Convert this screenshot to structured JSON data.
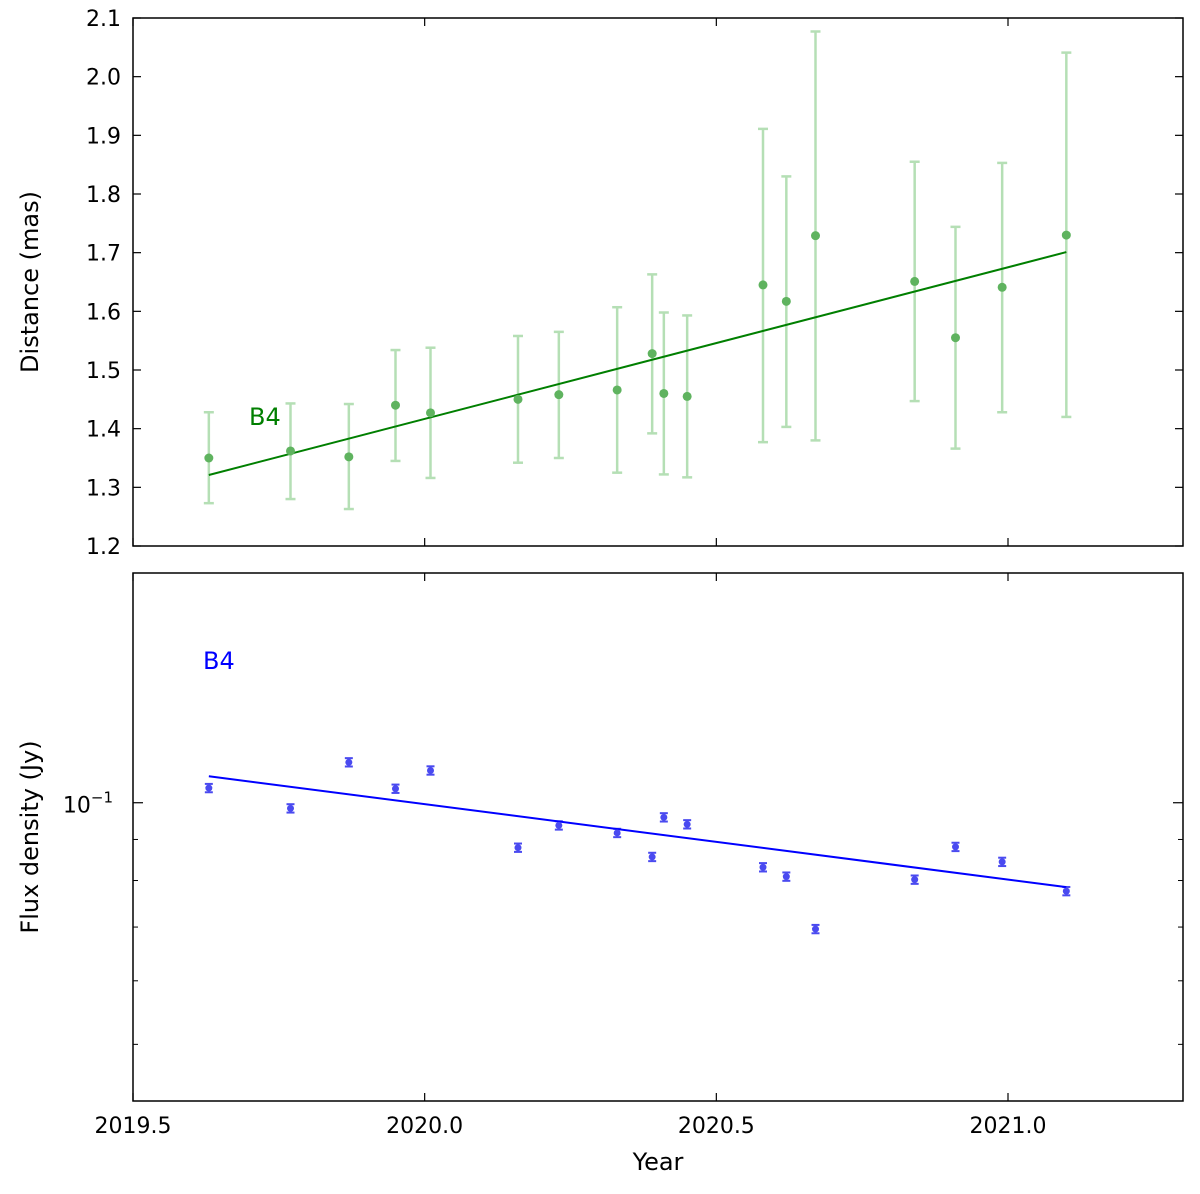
{
  "chart_data": [
    {
      "type": "scatter",
      "panel": "top",
      "ylabel": "Distance (mas)",
      "xlim": [
        2019.5,
        2021.3
      ],
      "ylim": [
        1.2,
        2.1
      ],
      "yscale": "linear",
      "yticks": [
        1.2,
        1.3,
        1.4,
        1.5,
        1.6,
        1.7,
        1.8,
        1.9,
        2.0,
        2.1
      ],
      "ytick_labels": [
        "1.2",
        "1.3",
        "1.4",
        "1.5",
        "1.6",
        "1.7",
        "1.8",
        "1.9",
        "2.0",
        "2.1"
      ],
      "xticks": [
        2019.5,
        2020.0,
        2020.5,
        2021.0
      ],
      "annotation": "B4",
      "annotation_color": "#007f00",
      "point_color": "#5fb35f",
      "errorbar_color": "#b5dfb5",
      "fit_color": "#007f00",
      "series": [
        {
          "x": [
            2019.63,
            2019.77,
            2019.87,
            2019.95,
            2020.01,
            2020.16,
            2020.23,
            2020.33,
            2020.39,
            2020.41,
            2020.45,
            2020.58,
            2020.62,
            2020.67,
            2020.84,
            2020.91,
            2020.99,
            2021.1
          ],
          "y": [
            1.35,
            1.362,
            1.352,
            1.44,
            1.427,
            1.45,
            1.458,
            1.466,
            1.528,
            1.46,
            1.455,
            1.645,
            1.617,
            1.729,
            1.651,
            1.555,
            1.641,
            1.73
          ],
          "yerr_low": [
            1.273,
            1.28,
            1.263,
            1.345,
            1.316,
            1.342,
            1.35,
            1.325,
            1.392,
            1.322,
            1.317,
            1.377,
            1.403,
            1.38,
            1.447,
            1.366,
            1.428,
            1.42
          ],
          "yerr_high": [
            1.428,
            1.443,
            1.442,
            1.534,
            1.538,
            1.558,
            1.565,
            1.607,
            1.663,
            1.598,
            1.593,
            1.911,
            1.83,
            2.077,
            1.855,
            1.744,
            1.853,
            2.041
          ]
        }
      ],
      "fit": {
        "x": [
          2019.63,
          2021.1
        ],
        "y": [
          1.321,
          1.701
        ]
      }
    },
    {
      "type": "scatter",
      "panel": "bottom",
      "xlabel": "Year",
      "ylabel": "Flux density (Jy)",
      "xlim": [
        2019.5,
        2021.3
      ],
      "ylim": [
        0.0425,
        0.1933
      ],
      "yscale": "log",
      "ytick_label_base": "10",
      "ytick_label_exp": "−1",
      "xticks": [
        2019.5,
        2020.0,
        2020.5,
        2021.0
      ],
      "xtick_labels": [
        "2019.5",
        "2020.0",
        "2020.5",
        "2021.0"
      ],
      "annotation": "B4",
      "annotation_color": "#0000ff",
      "point_color": "#4a4af0",
      "fit_color": "#0000ff",
      "series": [
        {
          "x": [
            2019.63,
            2019.77,
            2019.87,
            2019.95,
            2020.01,
            2020.16,
            2020.23,
            2020.33,
            2020.39,
            2020.41,
            2020.45,
            2020.58,
            2020.62,
            2020.67,
            2020.84,
            2020.91,
            2020.99,
            2021.1
          ],
          "y": [
            0.1043,
            0.0984,
            0.1123,
            0.1041,
            0.1097,
            0.0879,
            0.0937,
            0.0917,
            0.0856,
            0.0959,
            0.094,
            0.0831,
            0.0809,
            0.0696,
            0.0802,
            0.0881,
            0.0844,
            0.0776
          ],
          "yerr_rel": 0.012
        }
      ],
      "fit": {
        "x": [
          2019.63,
          2021.1
        ],
        "y": [
          0.1079,
          0.0785
        ]
      }
    }
  ]
}
